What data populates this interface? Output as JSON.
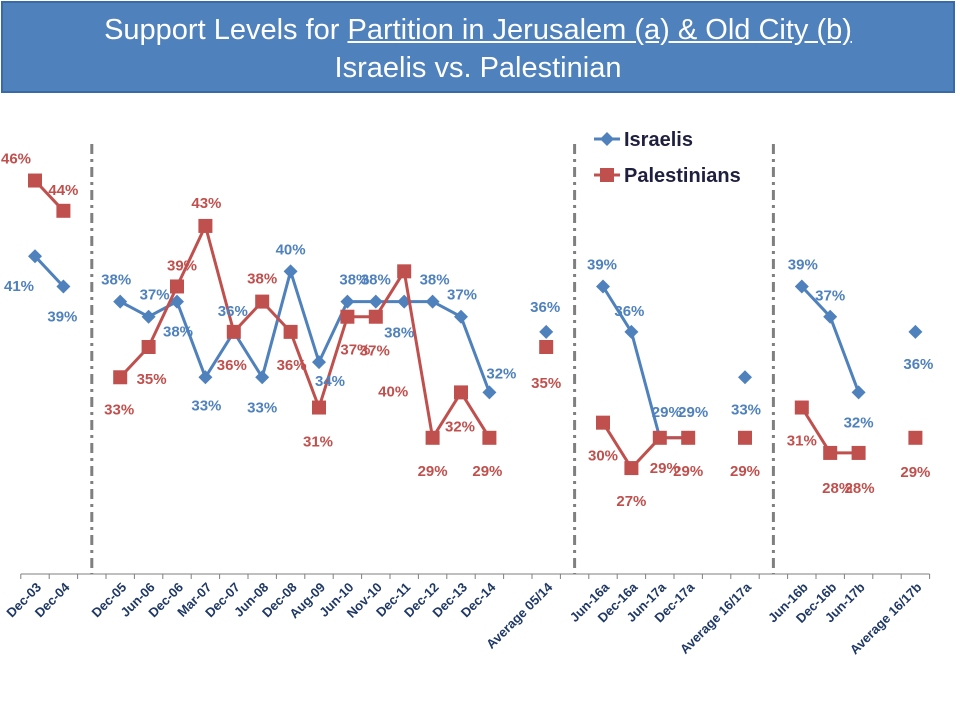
{
  "title": {
    "prefix": "Support Levels for ",
    "underlined": "Partition in Jerusalem (a) & Old City (b)",
    "line2": "Israelis vs. Palestinian"
  },
  "colors": {
    "israelis": "#4f81bd",
    "palestinians": "#c0504d",
    "divider": "#7f7f7f"
  },
  "chart_data": {
    "type": "line",
    "title": "Support Levels for Partition in Jerusalem (a) & Old City (b) Israelis vs. Palestinian",
    "xlabel": "",
    "ylabel": "",
    "ylim": [
      20,
      50
    ],
    "grid": false,
    "legend_position": "top-right",
    "categories": [
      "Dec-03",
      "Dec-04",
      "",
      "Dec-05",
      "Jun-06",
      "Dec-06",
      "Mar-07",
      "Dec-07",
      "Jun-08",
      "Dec-08",
      "Aug-09",
      "Jun-10",
      "Nov-10",
      "Dec-11",
      "Dec-12",
      "Dec-13",
      "Dec-14",
      "",
      "Average 05/14",
      "",
      "Jun-16a",
      "Dec-16a",
      "Jun-17a",
      "Dec-17a",
      "",
      "Average 16/17a",
      "",
      "Jun-16b",
      "Dec-16b",
      "Jun-17b",
      "",
      "Average 16/17b"
    ],
    "series": [
      {
        "name": "Israelis",
        "values": [
          41,
          39,
          null,
          38,
          37,
          38,
          33,
          36,
          33,
          40,
          34,
          38,
          38,
          38,
          38,
          37,
          32,
          null,
          36,
          null,
          39,
          36,
          29,
          29,
          null,
          33,
          null,
          39,
          37,
          32,
          null,
          36
        ],
        "labels": [
          "41%",
          "39%",
          "",
          "38%",
          "37%",
          "38%",
          "33%",
          "36%",
          "33%",
          "40%",
          "34%",
          "38%",
          "38%",
          "38%",
          "38%",
          "37%",
          "32%",
          "",
          "36%",
          "",
          "39%",
          "36%",
          "29%",
          "29%",
          "",
          "33%",
          "",
          "39%",
          "37%",
          "32%",
          "",
          "36%"
        ]
      },
      {
        "name": "Palestinians",
        "values": [
          46,
          44,
          null,
          33,
          35,
          39,
          43,
          36,
          38,
          36,
          31,
          37,
          37,
          40,
          29,
          32,
          29,
          null,
          35,
          null,
          30,
          27,
          29,
          29,
          null,
          29,
          null,
          31,
          28,
          28,
          null,
          29
        ],
        "labels": [
          "46%",
          "44%",
          "",
          "33%",
          "35%",
          "39%",
          "43%",
          "36%",
          "38%",
          "36%",
          "31%",
          "37%",
          "37%",
          "40%",
          "29%",
          "32%",
          "29%",
          "",
          "35%",
          "",
          "30%",
          "27%",
          "29%",
          "29%",
          "",
          "29%",
          "",
          "31%",
          "28%",
          "28%",
          "",
          "29%"
        ]
      }
    ],
    "segments": [
      [
        0,
        1
      ],
      [
        3,
        16
      ],
      [
        18,
        18
      ],
      [
        20,
        23
      ],
      [
        25,
        25
      ],
      [
        27,
        29
      ],
      [
        31,
        31
      ]
    ],
    "dividers_after": [
      1,
      18,
      25
    ]
  }
}
